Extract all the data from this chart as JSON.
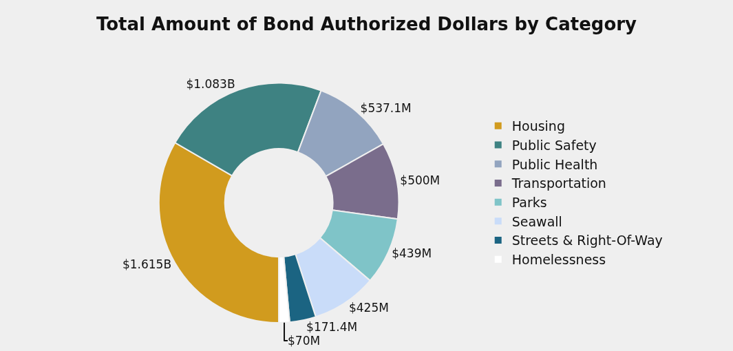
{
  "chart_data": {
    "type": "donut",
    "title": "Total Amount of Bond Authorized Dollars by Category",
    "categories": [
      "Housing",
      "Public Safety",
      "Public Health",
      "Transportation",
      "Parks",
      "Seawall",
      "Streets & Right-Of-Way",
      "Homelessness"
    ],
    "values": [
      1615000000,
      1083000000,
      537100000,
      500000000,
      439000000,
      425000000,
      171400000,
      70000000
    ],
    "value_labels": [
      "$1.615B",
      "$1.083B",
      "$537.1M",
      "$500M",
      "$439M",
      "$425M",
      "$171.4M",
      "$70M"
    ],
    "colors": [
      "#d19b1e",
      "#3e8282",
      "#92a4bf",
      "#7a6d8c",
      "#7fc4c8",
      "#c9dcf9",
      "#1b6482",
      "#ffffff"
    ],
    "legend": "right"
  }
}
